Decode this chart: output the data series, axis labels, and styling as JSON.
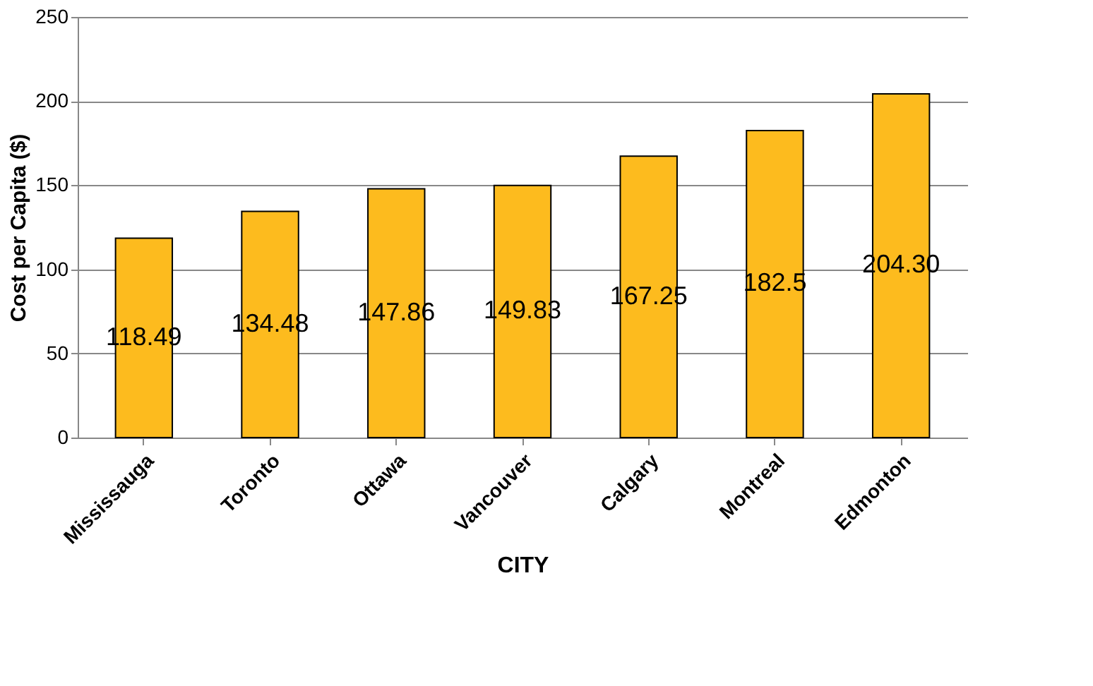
{
  "chart_data": {
    "type": "bar",
    "xlabel": "CITY",
    "ylabel": "Cost per Capita ($)",
    "categories": [
      "Mississauga",
      "Toronto",
      "Ottawa",
      "Vancouver",
      "Calgary",
      "Montreal",
      "Edmonton"
    ],
    "values": [
      118.49,
      134.48,
      147.86,
      149.83,
      167.25,
      182.5,
      204.3
    ],
    "value_labels": [
      "118.49",
      "134.48",
      "147.86",
      "149.83",
      "167.25",
      "182.5",
      "204.30"
    ],
    "color": "#fdbb1e",
    "ylim": [
      0,
      250
    ],
    "yticks": [
      0,
      50,
      100,
      150,
      200,
      250
    ],
    "grid": "y"
  }
}
